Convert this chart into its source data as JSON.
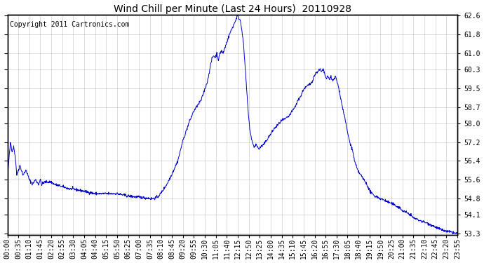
{
  "title": "Wind Chill per Minute (Last 24 Hours)  20110928",
  "copyright_text": "Copyright 2011 Cartronics.com",
  "line_color": "#0000CC",
  "background_color": "#ffffff",
  "plot_bg_color": "#ffffff",
  "grid_color": "#aaaaaa",
  "ylim": [
    53.3,
    62.6
  ],
  "yticks": [
    53.3,
    54.1,
    54.8,
    55.6,
    56.4,
    57.2,
    58.0,
    58.7,
    59.5,
    60.3,
    61.0,
    61.8,
    62.6
  ],
  "x_tick_labels": [
    "00:00",
    "00:35",
    "01:10",
    "01:45",
    "02:20",
    "02:55",
    "03:30",
    "04:05",
    "04:40",
    "05:15",
    "05:50",
    "06:25",
    "07:00",
    "07:35",
    "08:10",
    "08:45",
    "09:20",
    "09:55",
    "10:30",
    "11:05",
    "11:40",
    "12:15",
    "12:50",
    "13:25",
    "14:00",
    "14:35",
    "15:10",
    "15:45",
    "16:20",
    "16:55",
    "17:30",
    "18:05",
    "18:40",
    "19:15",
    "19:50",
    "20:25",
    "21:00",
    "21:35",
    "22:10",
    "22:45",
    "23:20",
    "23:55"
  ],
  "num_points": 1440,
  "seed": 42,
  "title_fontsize": 10,
  "tick_fontsize": 7,
  "copyright_fontsize": 7
}
